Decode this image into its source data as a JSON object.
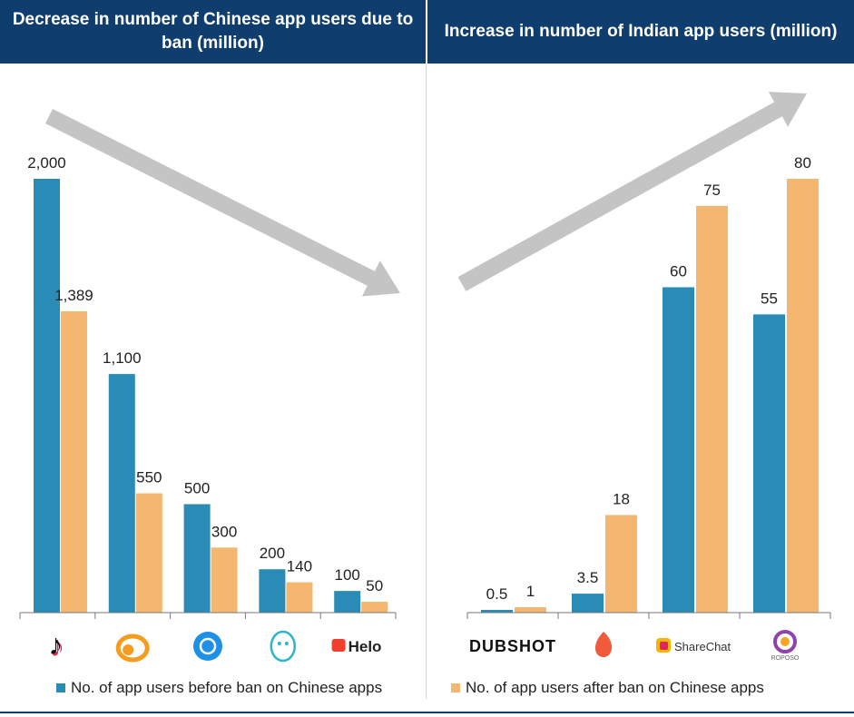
{
  "headers": {
    "left": "Decrease in number of Chinese app users due to ban (million)",
    "right": "Increase in number of Indian app users (million)"
  },
  "colors": {
    "before": "#2a8cb6",
    "after": "#f5b76f",
    "arrow": "#c4c4c4",
    "header": "#0f3d6e"
  },
  "legend": {
    "before": "No. of app users before ban on Chinese apps",
    "after": "No. of app users after ban on Chinese apps"
  },
  "chart_data": [
    {
      "type": "bar",
      "title": "Decrease in number of Chinese app users due to ban (million)",
      "categories": [
        "tiktok-logo",
        "uc-browser-logo",
        "shareit-logo",
        "bigo-live-logo",
        "Helo"
      ],
      "series": [
        {
          "name": "No. of app users before ban on Chinese apps",
          "values": [
            2000,
            1100,
            500,
            200,
            100
          ],
          "labels": [
            "2,000",
            "1,100",
            "500",
            "200",
            "100"
          ]
        },
        {
          "name": "No. of app users after ban on Chinese apps",
          "values": [
            1389,
            550,
            300,
            140,
            50
          ],
          "labels": [
            "1,389",
            "550",
            "300",
            "140",
            "50"
          ]
        }
      ],
      "ylim": [
        0,
        2000
      ],
      "trend": "down"
    },
    {
      "type": "bar",
      "title": "Increase in number of Indian app users (million)",
      "categories": [
        "DUBSHOT",
        "Chingari",
        "ShareChat",
        "ROPOSO"
      ],
      "series": [
        {
          "name": "No. of app users before ban on Chinese apps",
          "values": [
            0.5,
            3.5,
            60,
            55
          ],
          "labels": [
            "0.5",
            "3.5",
            "60",
            "55"
          ]
        },
        {
          "name": "No. of app users after ban on Chinese apps",
          "values": [
            1,
            18,
            75,
            80
          ],
          "labels": [
            "1",
            "18",
            "75",
            "80"
          ]
        }
      ],
      "ylim": [
        0,
        80
      ],
      "trend": "up"
    }
  ]
}
